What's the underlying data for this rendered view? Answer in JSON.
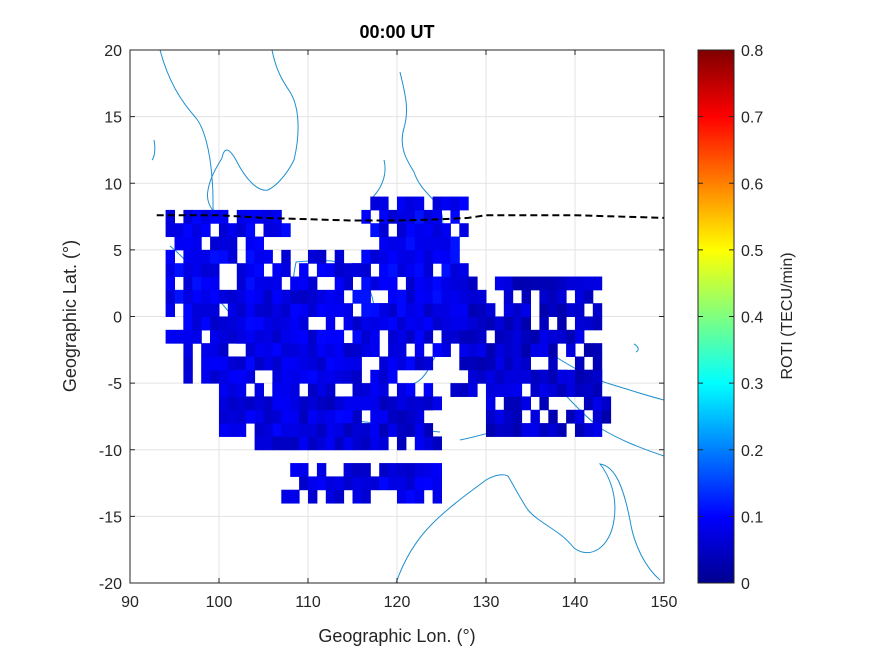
{
  "chart_data": {
    "type": "heatmap",
    "title": "00:00 UT",
    "xlabel": "Geographic Lon. (°)",
    "ylabel": "Geographic Lat. (°)",
    "xlim": [
      90,
      150
    ],
    "ylim": [
      -20,
      20
    ],
    "xticks": [
      "90",
      "100",
      "110",
      "120",
      "130",
      "140",
      "150"
    ],
    "yticks": [
      "20",
      "15",
      "10",
      "5",
      "0",
      "-5",
      "-10",
      "-15",
      "-20"
    ],
    "grid": true,
    "colorbar": {
      "label": "ROTI (TECU/min)",
      "range": [
        0,
        0.8
      ],
      "ticks": [
        "0.8",
        "0.7",
        "0.6",
        "0.5",
        "0.4",
        "0.3",
        "0.2",
        "0.1",
        "0"
      ]
    },
    "magnetic_equator": {
      "style": "dashed black",
      "points": [
        [
          93,
          7.6
        ],
        [
          100,
          7.6
        ],
        [
          105,
          7.4
        ],
        [
          110,
          7.3
        ],
        [
          115,
          7.2
        ],
        [
          120,
          7.2
        ],
        [
          125,
          7.3
        ],
        [
          128,
          7.4
        ],
        [
          130,
          7.6
        ],
        [
          134,
          7.6
        ],
        [
          140,
          7.6
        ],
        [
          145,
          7.5
        ],
        [
          150,
          7.4
        ]
      ]
    },
    "cell_groups": [
      {
        "lon": [
          94,
          108
        ],
        "lat": [
          -2,
          8
        ],
        "roti": 0.09
      },
      {
        "lon": [
          96,
          110
        ],
        "lat": [
          -5,
          2
        ],
        "roti": 0.08
      },
      {
        "lon": [
          100,
          115
        ],
        "lat": [
          -9,
          -2
        ],
        "roti": 0.08
      },
      {
        "lon": [
          106,
          124
        ],
        "lat": [
          -7,
          -3
        ],
        "roti": 0.08
      },
      {
        "lon": [
          104,
          125
        ],
        "lat": [
          -10,
          -6
        ],
        "roti": 0.07
      },
      {
        "lon": [
          108,
          126
        ],
        "lat": [
          -3,
          5
        ],
        "roti": 0.08
      },
      {
        "lon": [
          115,
          128
        ],
        "lat": [
          0,
          9
        ],
        "roti": 0.09
      },
      {
        "lon": [
          107,
          125
        ],
        "lat": [
          -14,
          -11
        ],
        "roti": 0.08
      },
      {
        "lon": [
          126,
          134
        ],
        "lat": [
          -6,
          0
        ],
        "roti": 0.07
      },
      {
        "lon": [
          130,
          144
        ],
        "lat": [
          -9,
          -4
        ],
        "roti": 0.06
      },
      {
        "lon": [
          128,
          143
        ],
        "lat": [
          -5,
          3
        ],
        "roti": 0.06
      }
    ]
  }
}
